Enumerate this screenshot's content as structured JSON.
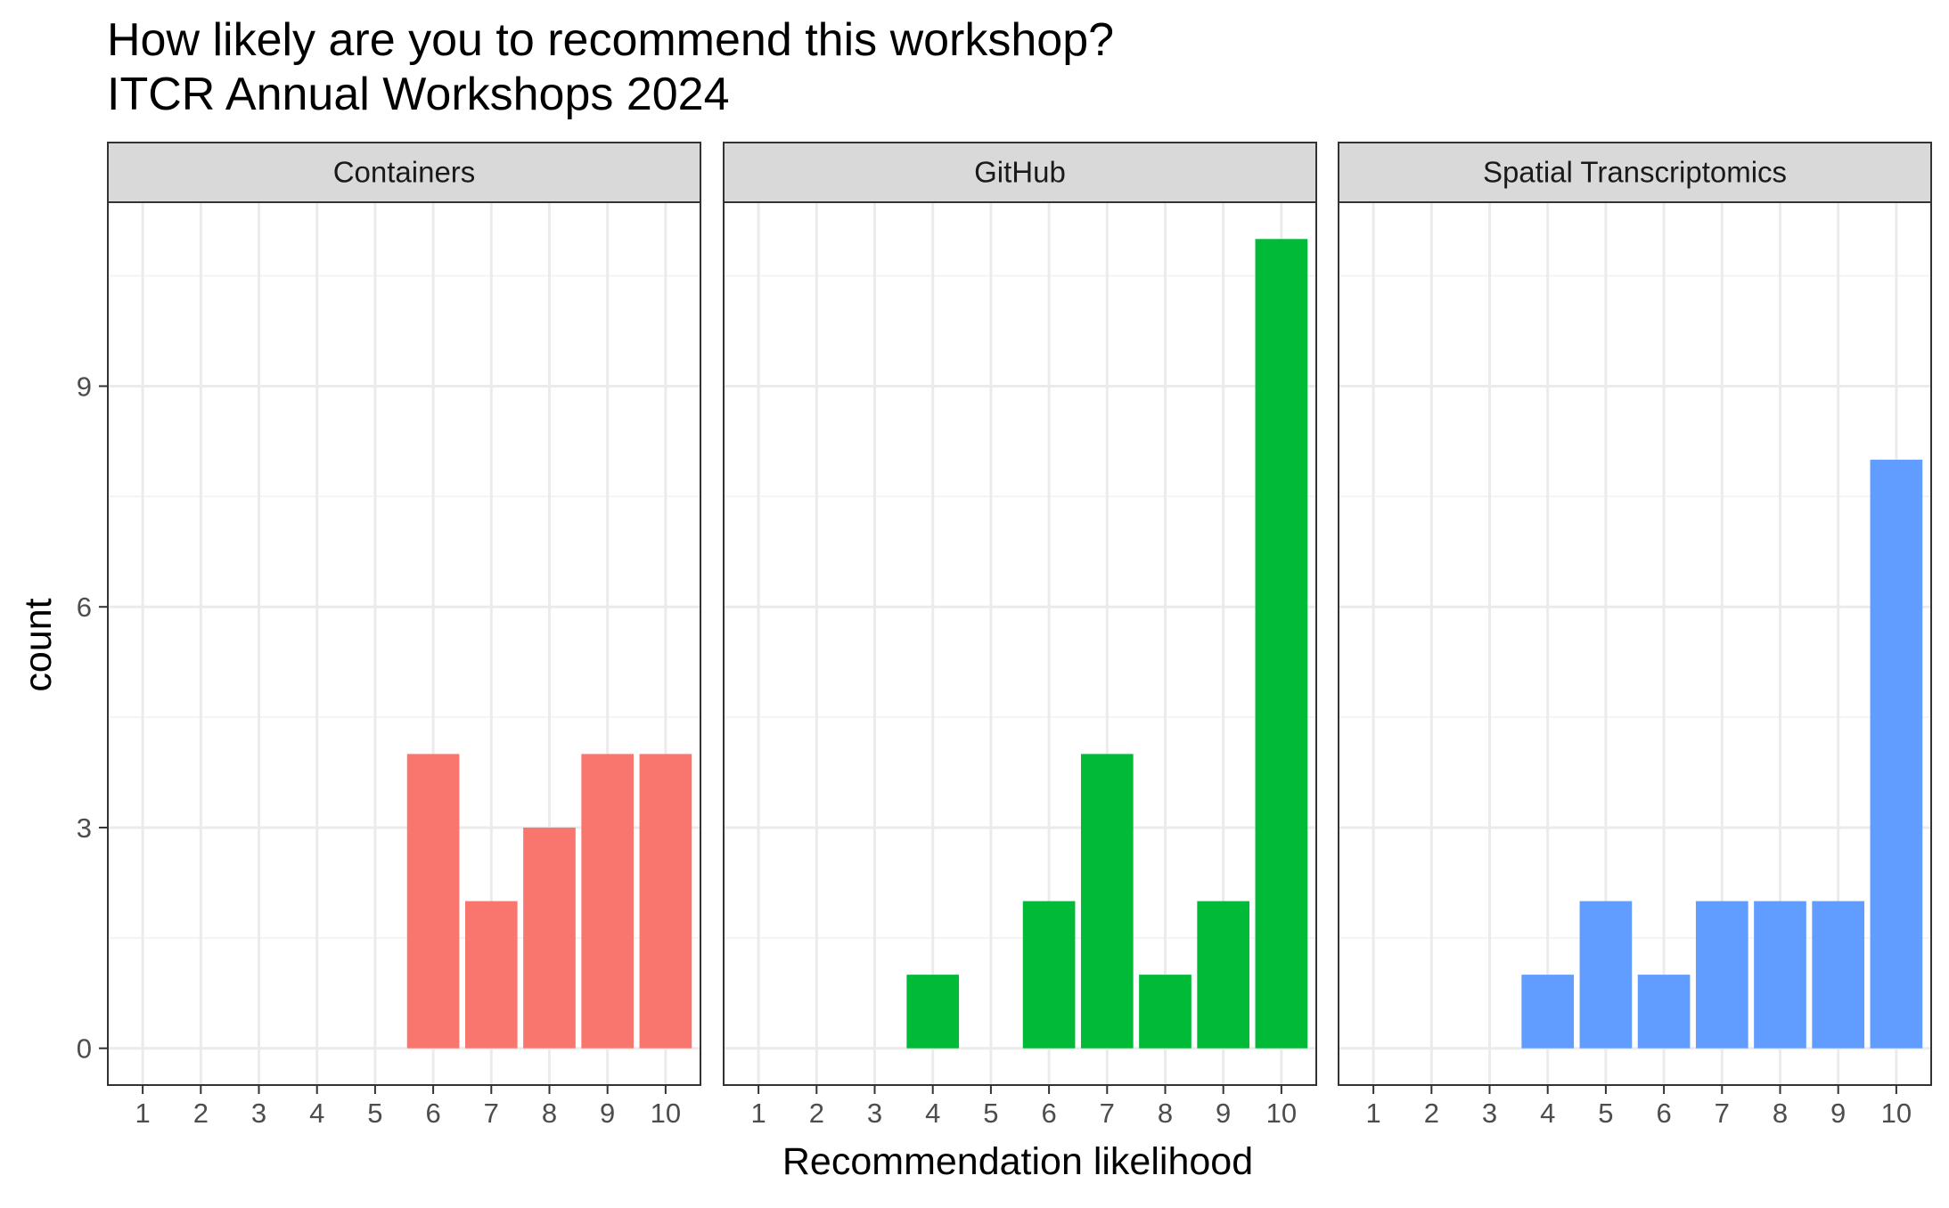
{
  "chart_data": {
    "type": "bar",
    "title_lines": [
      "How likely are you to recommend this workshop?",
      "ITCR Annual Workshops 2024"
    ],
    "xlabel": "Recommendation likelihood",
    "ylabel": "count",
    "x": [
      "1",
      "2",
      "3",
      "4",
      "5",
      "6",
      "7",
      "8",
      "9",
      "10"
    ],
    "y_ticks": [
      "0",
      "3",
      "6",
      "9"
    ],
    "ylim": [
      -0.5,
      11.5
    ],
    "grid": true,
    "legend": "none",
    "facets": [
      {
        "name": "Containers",
        "color": "#F8766D",
        "values": [
          0,
          0,
          0,
          0,
          0,
          4,
          2,
          3,
          4,
          4
        ]
      },
      {
        "name": "GitHub",
        "color": "#00BA38",
        "values": [
          0,
          0,
          0,
          1,
          0,
          2,
          4,
          1,
          2,
          11
        ]
      },
      {
        "name": "Spatial Transcriptomics",
        "color": "#619CFF",
        "values": [
          0,
          0,
          0,
          1,
          2,
          1,
          2,
          2,
          2,
          8
        ]
      }
    ]
  }
}
